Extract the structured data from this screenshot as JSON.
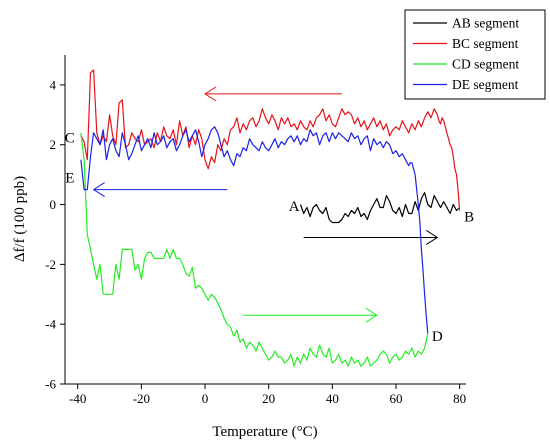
{
  "chart_data": {
    "type": "line",
    "title": "",
    "xlabel": "Temperature (°C)",
    "ylabel": "Δf/f (100 ppb)",
    "xlim": [
      -44,
      82
    ],
    "ylim": [
      -6,
      5
    ],
    "xticks": [
      -40,
      -20,
      0,
      20,
      40,
      60,
      80
    ],
    "yticks": [
      -6,
      -4,
      -2,
      0,
      2,
      4
    ],
    "grid": false,
    "legend_position": "top-right",
    "series": [
      {
        "name": "AB segment",
        "color": "#000000",
        "x": [
          30,
          31,
          32,
          33,
          34,
          35,
          36,
          37,
          38,
          39,
          40,
          41,
          42,
          43,
          44,
          45,
          46,
          47,
          48,
          49,
          50,
          51,
          52,
          53,
          54,
          55,
          56,
          57,
          58,
          59,
          60,
          61,
          62,
          63,
          64,
          65,
          66,
          67,
          68,
          69,
          70,
          71,
          72,
          73,
          74,
          75,
          76,
          77,
          78,
          79,
          80
        ],
        "y": [
          0.0,
          -0.3,
          -0.1,
          -0.4,
          -0.1,
          0.0,
          -0.2,
          -0.3,
          -0.1,
          -0.5,
          -0.6,
          -0.6,
          -0.6,
          -0.5,
          -0.3,
          -0.4,
          -0.2,
          -0.3,
          -0.1,
          -0.4,
          -0.3,
          -0.5,
          -0.2,
          0.0,
          0.2,
          -0.1,
          -0.1,
          0.3,
          0.1,
          -0.2,
          -0.3,
          -0.1,
          -0.4,
          0.0,
          -0.3,
          -0.3,
          0.1,
          -0.2,
          0.2,
          0.4,
          0.0,
          -0.1,
          0.3,
          0.1,
          -0.1,
          0.1,
          -0.1,
          -0.3,
          0.0,
          -0.2,
          -0.1
        ]
      },
      {
        "name": "BC segment",
        "color": "#e8131a",
        "x": [
          80,
          79.5,
          79,
          78.5,
          78,
          77.5,
          77,
          76.5,
          76,
          75.5,
          75,
          74.5,
          74,
          73.5,
          73,
          72.5,
          72,
          71,
          70,
          69,
          68,
          67,
          66,
          65,
          64,
          63,
          62,
          61,
          60,
          59,
          58,
          57,
          56,
          55,
          54,
          53,
          52,
          51,
          50,
          49,
          48,
          47,
          46,
          45,
          44,
          43,
          42,
          41,
          40,
          39,
          38,
          37,
          36,
          35,
          34,
          33,
          32,
          31,
          30,
          29,
          28,
          27,
          26,
          25,
          24,
          23,
          22,
          21,
          20,
          19,
          18,
          17,
          16,
          15,
          14,
          13,
          12,
          11,
          10,
          9,
          8,
          7,
          6,
          5,
          4,
          3,
          2,
          1,
          0,
          -1,
          -2,
          -3,
          -4,
          -5,
          -6,
          -7,
          -8,
          -9,
          -10,
          -11,
          -12,
          -13,
          -14,
          -15,
          -16,
          -17,
          -18,
          -19,
          -20,
          -21,
          -22,
          -23,
          -24,
          -25,
          -26,
          -27,
          -28,
          -29,
          -30,
          -31,
          -32,
          -33,
          -34,
          -35,
          -36,
          -37,
          -38,
          -39
        ],
        "y": [
          -0.2,
          0.5,
          1.0,
          1.2,
          1.6,
          1.9,
          2.0,
          2.2,
          2.4,
          2.6,
          2.8,
          2.9,
          2.7,
          2.8,
          3.0,
          3.1,
          3.2,
          2.9,
          3.1,
          2.9,
          2.6,
          2.8,
          2.5,
          2.7,
          2.4,
          2.6,
          2.8,
          2.5,
          2.6,
          2.5,
          2.3,
          2.7,
          2.5,
          2.8,
          2.6,
          2.9,
          2.7,
          2.5,
          2.8,
          2.6,
          2.9,
          2.7,
          3.0,
          3.1,
          3.0,
          3.2,
          2.9,
          2.6,
          2.7,
          3.0,
          2.8,
          3.2,
          3.0,
          2.9,
          2.6,
          2.8,
          2.5,
          2.6,
          2.8,
          2.5,
          2.7,
          2.6,
          2.9,
          2.7,
          2.9,
          2.5,
          2.8,
          3.0,
          2.7,
          2.9,
          3.2,
          2.8,
          2.6,
          2.9,
          2.8,
          2.5,
          2.7,
          2.4,
          2.9,
          2.6,
          2.5,
          2.0,
          2.2,
          1.8,
          2.0,
          1.4,
          1.6,
          1.2,
          1.5,
          2.2,
          2.5,
          2.0,
          2.3,
          1.9,
          2.6,
          2.3,
          2.8,
          2.0,
          2.5,
          2.2,
          2.3,
          2.6,
          2.1,
          2.4,
          1.9,
          2.2,
          2.1,
          2.0,
          2.5,
          2.1,
          2.2,
          2.4,
          2.0,
          1.9,
          3.5,
          3.4,
          2.0,
          2.3,
          3.0,
          2.1,
          2.3,
          2.0,
          2.4,
          4.5,
          4.4,
          1.5,
          2.1,
          2.3
        ]
      },
      {
        "name": "CD segment",
        "color": "#22ee22",
        "x": [
          -39,
          -38,
          -37,
          -36,
          -35,
          -34,
          -33,
          -32,
          -31,
          -30,
          -29,
          -28,
          -27,
          -26,
          -25,
          -24,
          -23,
          -22,
          -21,
          -20,
          -19,
          -18,
          -17,
          -16,
          -15,
          -14,
          -13,
          -12,
          -11,
          -10,
          -9,
          -8,
          -7,
          -6,
          -5,
          -4,
          -3,
          -2,
          -1,
          0,
          1,
          2,
          3,
          4,
          5,
          6,
          7,
          8,
          9,
          10,
          11,
          12,
          13,
          14,
          15,
          16,
          17,
          18,
          19,
          20,
          21,
          22,
          23,
          24,
          25,
          26,
          27,
          28,
          29,
          30,
          31,
          32,
          33,
          34,
          35,
          36,
          37,
          38,
          39,
          40,
          41,
          42,
          43,
          44,
          45,
          46,
          47,
          48,
          49,
          50,
          51,
          52,
          53,
          54,
          55,
          56,
          57,
          58,
          59,
          60,
          61,
          62,
          63,
          64,
          65,
          66,
          67,
          68,
          69,
          70
        ],
        "y": [
          2.4,
          1.5,
          -1.0,
          -1.5,
          -2.0,
          -2.5,
          -2.0,
          -3.0,
          -3.0,
          -3.0,
          -3.0,
          -2.0,
          -2.5,
          -1.5,
          -1.5,
          -1.5,
          -1.5,
          -2.2,
          -2.0,
          -2.5,
          -1.8,
          -1.6,
          -1.6,
          -1.8,
          -1.8,
          -1.8,
          -1.8,
          -1.5,
          -1.8,
          -1.5,
          -1.8,
          -1.8,
          -2.0,
          -2.3,
          -2.4,
          -2.1,
          -2.8,
          -2.7,
          -2.8,
          -3.0,
          -3.2,
          -3.0,
          -3.1,
          -3.3,
          -3.5,
          -3.8,
          -4.0,
          -4.1,
          -4.4,
          -4.2,
          -4.6,
          -4.5,
          -4.8,
          -4.6,
          -4.7,
          -4.9,
          -4.6,
          -4.8,
          -5.0,
          -5.2,
          -5.1,
          -4.9,
          -5.1,
          -5.1,
          -5.3,
          -5.2,
          -5.0,
          -5.4,
          -5.1,
          -5.3,
          -5.0,
          -5.2,
          -4.8,
          -5.0,
          -5.1,
          -4.7,
          -5.0,
          -5.1,
          -4.8,
          -5.3,
          -5.2,
          -5.0,
          -5.3,
          -5.2,
          -5.4,
          -5.1,
          -5.3,
          -5.2,
          -5.4,
          -5.3,
          -5.1,
          -5.4,
          -5.3,
          -5.2,
          -5.0,
          -4.9,
          -5.0,
          -5.3,
          -5.1,
          -5.0,
          -5.2,
          -5.1,
          -4.9,
          -5.0,
          -4.8,
          -5.1,
          -4.9,
          -5.0,
          -4.8,
          -4.3
        ]
      },
      {
        "name": "DE segment",
        "color": "#1a24e6",
        "x": [
          70,
          69.5,
          69,
          68.5,
          68,
          67.5,
          67,
          66.5,
          66,
          65.5,
          65,
          64.5,
          64,
          63,
          62,
          61,
          60,
          59,
          58,
          57,
          56,
          55,
          54,
          53,
          52,
          51,
          50,
          49,
          48,
          47,
          46,
          45,
          44,
          43,
          42,
          41,
          40,
          39,
          38,
          37,
          36,
          35,
          34,
          33,
          32,
          31,
          30,
          29,
          28,
          27,
          26,
          25,
          24,
          23,
          22,
          21,
          20,
          19,
          18,
          17,
          16,
          15,
          14,
          13,
          12,
          11,
          10,
          9,
          8,
          7,
          6,
          5,
          4,
          3,
          2,
          1,
          0,
          -1,
          -2,
          -3,
          -4,
          -5,
          -6,
          -7,
          -8,
          -9,
          -10,
          -11,
          -12,
          -13,
          -14,
          -15,
          -16,
          -17,
          -18,
          -19,
          -20,
          -21,
          -22,
          -23,
          -24,
          -25,
          -26,
          -27,
          -28,
          -29,
          -30,
          -31,
          -32,
          -33,
          -34,
          -35,
          -36,
          -37,
          -38,
          -39
        ],
        "y": [
          -4.3,
          -3.7,
          -3.0,
          -2.2,
          -1.5,
          -0.6,
          0.0,
          0.5,
          1.0,
          1.2,
          1.4,
          1.4,
          1.3,
          1.5,
          1.7,
          1.6,
          1.8,
          1.7,
          2.0,
          2.1,
          1.9,
          2.1,
          2.0,
          2.2,
          1.8,
          2.3,
          2.2,
          2.0,
          2.3,
          2.2,
          2.4,
          2.1,
          2.2,
          2.3,
          2.4,
          2.2,
          2.4,
          2.1,
          2.4,
          2.3,
          2.0,
          2.4,
          2.3,
          2.5,
          2.1,
          2.2,
          2.0,
          2.3,
          2.1,
          2.3,
          2.2,
          2.0,
          2.1,
          1.9,
          2.2,
          2.0,
          1.8,
          1.9,
          2.1,
          1.8,
          1.9,
          2.0,
          2.2,
          1.8,
          1.9,
          1.6,
          1.7,
          1.3,
          1.5,
          1.8,
          1.6,
          2.0,
          2.4,
          2.6,
          2.5,
          2.2,
          2.0,
          1.6,
          2.1,
          2.5,
          2.3,
          2.1,
          2.5,
          2.3,
          2.0,
          1.8,
          2.2,
          2.1,
          1.9,
          2.3,
          2.1,
          2.0,
          2.4,
          1.9,
          2.2,
          2.0,
          1.8,
          2.3,
          2.0,
          1.7,
          1.5,
          2.0,
          2.4,
          1.6,
          1.8,
          2.2,
          2.0,
          1.5,
          2.5,
          2.0,
          2.2,
          2.4,
          1.6,
          0.5,
          0.5,
          1.5
        ]
      }
    ],
    "annotations": {
      "point_labels": [
        {
          "text": "A",
          "x": 28,
          "y": -0.05
        },
        {
          "text": "B",
          "x": 83,
          "y": -0.4
        },
        {
          "text": "C",
          "x": -42.5,
          "y": 2.25
        },
        {
          "text": "D",
          "x": 73,
          "y": -4.4
        },
        {
          "text": "E",
          "x": -42.5,
          "y": 0.9
        }
      ],
      "arrows": [
        {
          "color": "#e8131a",
          "x_start": 43,
          "x_end": 0,
          "y": 3.7
        },
        {
          "color": "#1a24e6",
          "x_start": 7,
          "x_end": -35,
          "y": 0.5
        },
        {
          "color": "#000000",
          "x_start": 31,
          "x_end": 73,
          "y": -1.1
        },
        {
          "color": "#22ee22",
          "x_start": 12,
          "x_end": 54,
          "y": -3.7
        }
      ]
    }
  }
}
